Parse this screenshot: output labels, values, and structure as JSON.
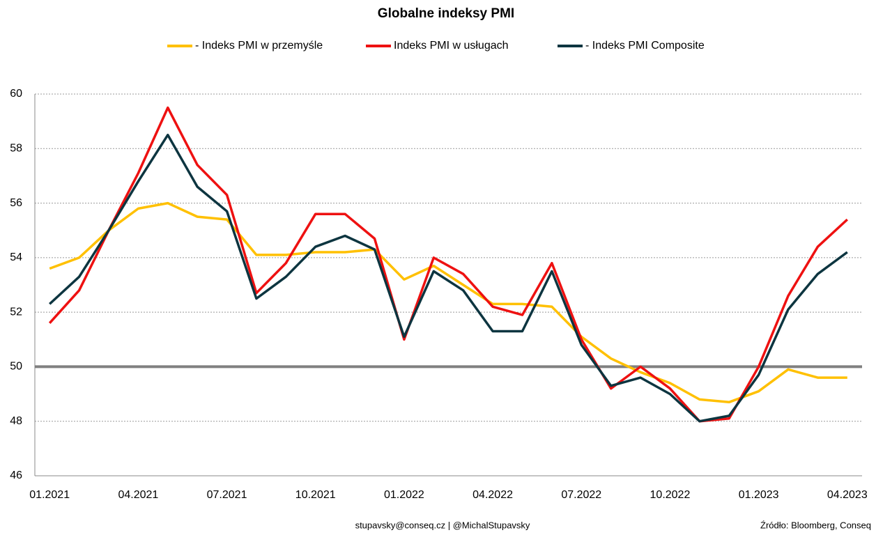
{
  "chart_data": {
    "type": "line",
    "title": "Globalne indeksy PMI",
    "categories": [
      "01.2021",
      null,
      null,
      "04.2021",
      null,
      null,
      "07.2021",
      null,
      null,
      "10.2021",
      null,
      null,
      "01.2022",
      null,
      null,
      "04.2022",
      null,
      null,
      "07.2022",
      null,
      null,
      "10.2022",
      null,
      null,
      "01.2023",
      null,
      null,
      "04.2023"
    ],
    "series": [
      {
        "name": "- Indeks PMI w przemyśle",
        "color": "#ffc000",
        "values": [
          53.6,
          54.0,
          55.0,
          55.8,
          56.0,
          55.5,
          55.4,
          54.1,
          54.1,
          54.2,
          54.2,
          54.3,
          53.2,
          53.7,
          53.0,
          52.3,
          52.3,
          52.2,
          51.1,
          50.3,
          49.8,
          49.4,
          48.8,
          48.7,
          49.1,
          49.9,
          49.6,
          49.6
        ]
      },
      {
        "name": "Indeks PMI w usługach",
        "color": "#ee1111",
        "values": [
          51.6,
          52.8,
          55.0,
          57.1,
          59.5,
          57.4,
          56.3,
          52.7,
          53.8,
          55.6,
          55.6,
          54.7,
          51.0,
          54.0,
          53.4,
          52.2,
          51.9,
          53.8,
          51.0,
          49.2,
          50.0,
          49.2,
          48.0,
          48.1,
          50.0,
          52.6,
          54.4,
          55.4
        ]
      },
      {
        "name": "- Indeks PMI Composite",
        "color": "#0d3540",
        "values": [
          52.3,
          53.3,
          55.0,
          56.8,
          58.5,
          56.6,
          55.7,
          52.5,
          53.3,
          54.4,
          54.8,
          54.3,
          51.1,
          53.5,
          52.8,
          51.3,
          51.3,
          53.5,
          50.8,
          49.3,
          49.6,
          49.0,
          48.0,
          48.2,
          49.7,
          52.1,
          53.4,
          54.2
        ]
      }
    ],
    "ylim": [
      46,
      60
    ],
    "yticks": [
      46,
      48,
      50,
      52,
      54,
      56,
      58,
      60
    ],
    "grid": true,
    "reference_line": 50,
    "reference_color": "#808080",
    "footer": "stupavsky@conseq.cz  |  @MichalStupavsky",
    "source": "Źródło: Bloomberg, Conseq"
  }
}
